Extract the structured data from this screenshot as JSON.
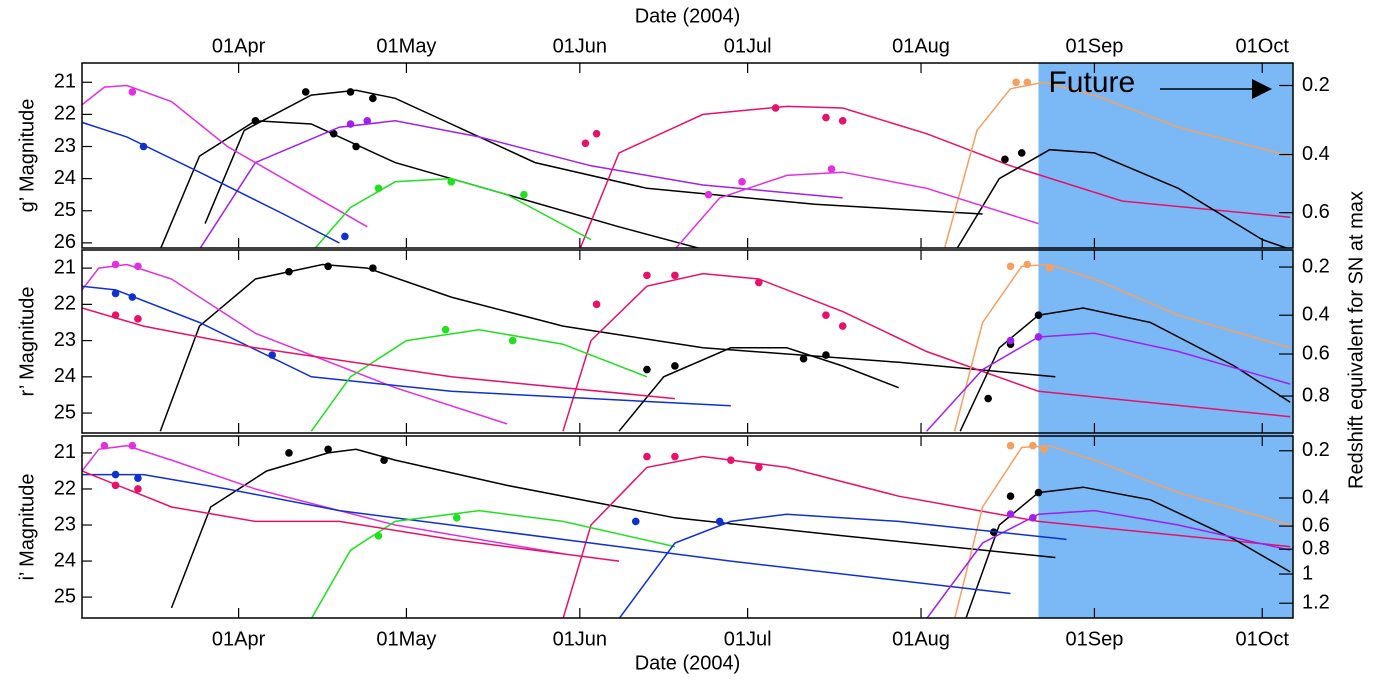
{
  "x_axis": {
    "label": "Date (2004)",
    "xlim": [
      64,
      280.5
    ],
    "xticks": [
      {
        "value": 92,
        "label": "01Apr"
      },
      {
        "value": 122,
        "label": "01May"
      },
      {
        "value": 153,
        "label": "01Jun"
      },
      {
        "value": 183,
        "label": "01Jul"
      },
      {
        "value": 214,
        "label": "01Aug"
      },
      {
        "value": 245,
        "label": "01Sep"
      },
      {
        "value": 275,
        "label": "01Oct"
      }
    ]
  },
  "future": {
    "label": "Future",
    "start": 235,
    "color": "#7ab8f6"
  },
  "y2_label": "Redshift equivalent for SN at max",
  "chart_data": [
    {
      "type": "line",
      "y_label": "g’ Magnitude",
      "ylim": [
        20.4,
        26.16
      ],
      "yticks": [
        21,
        22,
        23,
        24,
        25,
        26
      ],
      "y2ticks": [
        0.2,
        0.4,
        0.6
      ],
      "y2tick_positions": [
        21.1,
        23.25,
        25.06
      ],
      "series": [
        {
          "color": "#000000",
          "x": [
            86,
            93,
            105,
            113,
            120,
            130,
            145,
            165,
            195,
            225
          ],
          "values": [
            25.4,
            22.5,
            21.4,
            21.25,
            21.5,
            22.3,
            23.5,
            24.3,
            24.8,
            25.1
          ],
          "obs_x": [
            104,
            112,
            116
          ],
          "obs": [
            21.3,
            21.3,
            21.5
          ]
        },
        {
          "color": "#000000",
          "x": [
            78,
            85,
            95,
            105,
            120,
            140,
            160,
            175
          ],
          "values": [
            26.2,
            23.3,
            22.2,
            22.3,
            23.5,
            24.5,
            25.5,
            26.2
          ],
          "obs_x": [
            95,
            109,
            113
          ],
          "obs": [
            22.2,
            22.6,
            23.0
          ]
        },
        {
          "color": "#e8106a",
          "x": [
            153,
            160,
            175,
            190,
            200,
            215,
            230,
            250,
            280
          ],
          "values": [
            26.2,
            23.2,
            22.0,
            21.75,
            21.8,
            22.6,
            23.6,
            24.7,
            25.2
          ],
          "obs_x": [
            154,
            156,
            188,
            197,
            200
          ],
          "obs": [
            22.9,
            22.6,
            21.8,
            22.1,
            22.2
          ]
        },
        {
          "color": "#f5a060",
          "x": [
            218,
            224,
            230,
            236,
            245,
            260,
            280
          ],
          "values": [
            26.3,
            22.5,
            21.2,
            21.0,
            21.4,
            22.4,
            23.3
          ],
          "obs_x": [
            231,
            233
          ],
          "obs": [
            21.0,
            21.0
          ]
        },
        {
          "color": "#000000",
          "x": [
            220,
            228,
            237,
            245,
            260,
            275,
            280
          ],
          "values": [
            26.3,
            24.0,
            23.1,
            23.2,
            24.3,
            25.9,
            26.2
          ],
          "obs_x": [
            229,
            232
          ],
          "obs": [
            23.4,
            23.2
          ]
        },
        {
          "color": "#a020f0",
          "x": [
            85,
            95,
            110,
            120,
            135,
            155,
            175,
            200
          ],
          "values": [
            26.2,
            23.5,
            22.4,
            22.2,
            22.7,
            23.6,
            24.2,
            24.6
          ],
          "obs_x": [
            112,
            115
          ],
          "obs": [
            22.3,
            22.2
          ]
        },
        {
          "color": "#e030e0",
          "x": [
            64,
            68,
            72,
            80,
            90,
            105,
            115
          ],
          "values": [
            21.7,
            21.15,
            21.1,
            21.6,
            23.0,
            24.5,
            25.5
          ],
          "obs_x": [
            73
          ],
          "obs": [
            21.3
          ]
        },
        {
          "color": "#20e020",
          "x": [
            105,
            112,
            120,
            130,
            140,
            155
          ],
          "values": [
            26.3,
            24.9,
            24.1,
            24.0,
            24.5,
            25.9
          ],
          "obs_x": [
            117,
            130,
            143
          ],
          "obs": [
            24.3,
            24.1,
            24.5
          ]
        },
        {
          "color": "#1030d0",
          "x": [
            64,
            72,
            85,
            100,
            110
          ],
          "values": [
            22.25,
            22.7,
            23.8,
            25.1,
            26.0
          ],
          "obs_x": [
            75,
            111
          ],
          "obs": [
            23.0,
            25.8
          ]
        },
        {
          "color": "#e030e0",
          "x": [
            170,
            178,
            190,
            200,
            215,
            235
          ],
          "values": [
            26.2,
            24.6,
            23.9,
            23.8,
            24.3,
            25.4
          ],
          "obs_x": [
            176,
            182,
            198
          ],
          "obs": [
            24.5,
            24.1,
            23.7
          ]
        }
      ]
    },
    {
      "type": "line",
      "y_label": "r’ Magnitude",
      "ylim": [
        20.5,
        25.55
      ],
      "yticks": [
        21,
        22,
        23,
        24,
        25
      ],
      "y2ticks": [
        0.2,
        0.4,
        0.6,
        0.8
      ],
      "y2tick_positions": [
        20.97,
        22.3,
        23.37,
        24.53
      ],
      "series": [
        {
          "color": "#000000",
          "x": [
            78,
            85,
            95,
            107,
            115,
            130,
            150,
            175,
            210,
            238
          ],
          "values": [
            25.5,
            22.6,
            21.3,
            20.9,
            21.0,
            21.8,
            22.6,
            23.2,
            23.6,
            24.0
          ],
          "obs_x": [
            101,
            108,
            116
          ],
          "obs": [
            21.1,
            20.95,
            21.0
          ]
        },
        {
          "color": "#e8106a",
          "x": [
            150,
            155,
            165,
            175,
            185,
            200,
            215,
            235,
            280
          ],
          "values": [
            25.5,
            23.0,
            21.5,
            21.15,
            21.3,
            22.2,
            23.3,
            24.4,
            25.1
          ],
          "obs_x": [
            156,
            165,
            170,
            185,
            197,
            200
          ],
          "obs": [
            22.0,
            21.2,
            21.2,
            21.4,
            22.3,
            22.6
          ]
        },
        {
          "color": "#f5a060",
          "x": [
            220,
            225,
            232,
            237,
            245,
            260,
            280
          ],
          "values": [
            25.5,
            22.5,
            20.95,
            20.9,
            21.3,
            22.3,
            23.2
          ],
          "obs_x": [
            230,
            233,
            237
          ],
          "obs": [
            20.95,
            20.9,
            21.0
          ]
        },
        {
          "color": "#000000",
          "x": [
            221,
            228,
            235,
            243,
            255,
            270,
            280
          ],
          "values": [
            25.5,
            23.2,
            22.3,
            22.1,
            22.5,
            23.7,
            24.7
          ],
          "obs_x": [
            226,
            230,
            235
          ],
          "obs": [
            24.6,
            23.1,
            22.3
          ]
        },
        {
          "color": "#e030e0",
          "x": [
            64,
            67,
            72,
            80,
            95,
            120,
            140
          ],
          "values": [
            21.6,
            21.0,
            20.9,
            21.3,
            22.8,
            24.3,
            25.3
          ],
          "obs_x": [
            70,
            74
          ],
          "obs": [
            20.9,
            20.95
          ]
        },
        {
          "color": "#1030d0",
          "x": [
            64,
            70,
            85,
            105,
            130,
            180
          ],
          "values": [
            21.5,
            21.6,
            22.5,
            24.0,
            24.4,
            24.8
          ],
          "obs_x": [
            70,
            73,
            98
          ],
          "obs": [
            21.7,
            21.8,
            23.4
          ]
        },
        {
          "color": "#20e020",
          "x": [
            105,
            112,
            122,
            135,
            150,
            165
          ],
          "values": [
            25.5,
            24.0,
            23.0,
            22.7,
            23.1,
            24.0
          ],
          "obs_x": [
            129,
            141
          ],
          "obs": [
            22.7,
            23.0
          ]
        },
        {
          "color": "#a020f0",
          "x": [
            215,
            225,
            235,
            245,
            260,
            280
          ],
          "values": [
            25.5,
            23.8,
            22.9,
            22.8,
            23.3,
            24.2
          ],
          "obs_x": [
            230,
            235
          ],
          "obs": [
            23.0,
            22.9
          ]
        },
        {
          "color": "#000000",
          "x": [
            160,
            168,
            180,
            190,
            200,
            210
          ],
          "values": [
            25.5,
            24.0,
            23.2,
            23.2,
            23.7,
            24.3
          ],
          "obs_x": [
            165,
            170,
            193,
            197
          ],
          "obs": [
            23.8,
            23.7,
            23.5,
            23.4
          ]
        },
        {
          "color": "#e8106a",
          "x": [
            64,
            75,
            95,
            130,
            170
          ],
          "values": [
            22.1,
            22.6,
            23.2,
            24.0,
            24.6
          ],
          "obs_x": [
            70,
            74
          ],
          "obs": [
            22.3,
            22.4
          ]
        }
      ]
    },
    {
      "type": "line",
      "y_label": "i’ Magnitude",
      "ylim": [
        20.53,
        25.58
      ],
      "yticks": [
        21,
        22,
        23,
        24,
        25
      ],
      "y2ticks": [
        0.2,
        0.4,
        0.6,
        0.8,
        1.0,
        1.2
      ],
      "y2tick_positions": [
        20.94,
        22.25,
        23.03,
        23.67,
        24.36,
        25.17
      ],
      "series": [
        {
          "color": "#000000",
          "x": [
            80,
            87,
            97,
            108,
            113,
            120,
            140,
            170,
            200,
            238
          ],
          "values": [
            25.3,
            22.5,
            21.5,
            21.0,
            20.9,
            21.2,
            21.9,
            22.8,
            23.3,
            23.9
          ],
          "obs_x": [
            101,
            108,
            118
          ],
          "obs": [
            21.0,
            20.9,
            21.2
          ]
        },
        {
          "color": "#e8106a",
          "x": [
            150,
            155,
            165,
            175,
            190,
            210,
            235,
            280
          ],
          "values": [
            25.6,
            23.0,
            21.4,
            21.1,
            21.4,
            22.2,
            22.9,
            23.6
          ],
          "obs_x": [
            165,
            170,
            180,
            185
          ],
          "obs": [
            21.1,
            21.1,
            21.2,
            21.4
          ]
        },
        {
          "color": "#f5a060",
          "x": [
            220,
            225,
            232,
            237,
            245,
            260,
            280
          ],
          "values": [
            25.6,
            22.5,
            20.85,
            20.8,
            21.2,
            22.1,
            23.0
          ],
          "obs_x": [
            230,
            234,
            236
          ],
          "obs": [
            20.8,
            20.8,
            20.9
          ]
        },
        {
          "color": "#000000",
          "x": [
            222,
            228,
            235,
            243,
            255,
            270,
            280
          ],
          "values": [
            25.6,
            23.0,
            22.1,
            21.95,
            22.3,
            23.4,
            24.3
          ],
          "obs_x": [
            227,
            230,
            235
          ],
          "obs": [
            23.2,
            22.2,
            22.1
          ]
        },
        {
          "color": "#e030e0",
          "x": [
            64,
            67,
            72,
            80,
            95,
            120,
            150
          ],
          "values": [
            21.5,
            20.9,
            20.8,
            21.2,
            22.0,
            23.0,
            23.8
          ],
          "obs_x": [
            68,
            73
          ],
          "obs": [
            20.8,
            20.8
          ]
        },
        {
          "color": "#1030d0",
          "x": [
            64,
            75,
            90,
            110,
            140,
            180,
            230
          ],
          "values": [
            21.6,
            21.6,
            22.0,
            22.6,
            23.2,
            24.0,
            24.9
          ],
          "obs_x": [
            70,
            74
          ],
          "obs": [
            21.6,
            21.7
          ]
        },
        {
          "color": "#20e020",
          "x": [
            105,
            112,
            120,
            135,
            150,
            170
          ],
          "values": [
            25.6,
            23.7,
            22.9,
            22.6,
            22.9,
            23.6
          ],
          "obs_x": [
            117,
            131
          ],
          "obs": [
            23.3,
            22.8
          ]
        },
        {
          "color": "#a020f0",
          "x": [
            215,
            225,
            235,
            245,
            260,
            280
          ],
          "values": [
            25.6,
            23.5,
            22.7,
            22.6,
            23.0,
            23.7
          ],
          "obs_x": [
            230,
            234
          ],
          "obs": [
            22.7,
            22.8
          ]
        },
        {
          "color": "#1030d0",
          "x": [
            160,
            170,
            180,
            190,
            210,
            240
          ],
          "values": [
            25.6,
            23.5,
            22.9,
            22.7,
            22.9,
            23.4
          ],
          "obs_x": [
            163,
            178
          ],
          "obs": [
            22.9,
            22.9
          ]
        },
        {
          "color": "#e8106a",
          "x": [
            64,
            80,
            95,
            110,
            130,
            160
          ],
          "values": [
            21.5,
            22.5,
            22.9,
            22.9,
            23.4,
            24.0
          ],
          "obs_x": [
            70,
            74
          ],
          "obs": [
            21.9,
            22.0
          ]
        }
      ]
    }
  ]
}
